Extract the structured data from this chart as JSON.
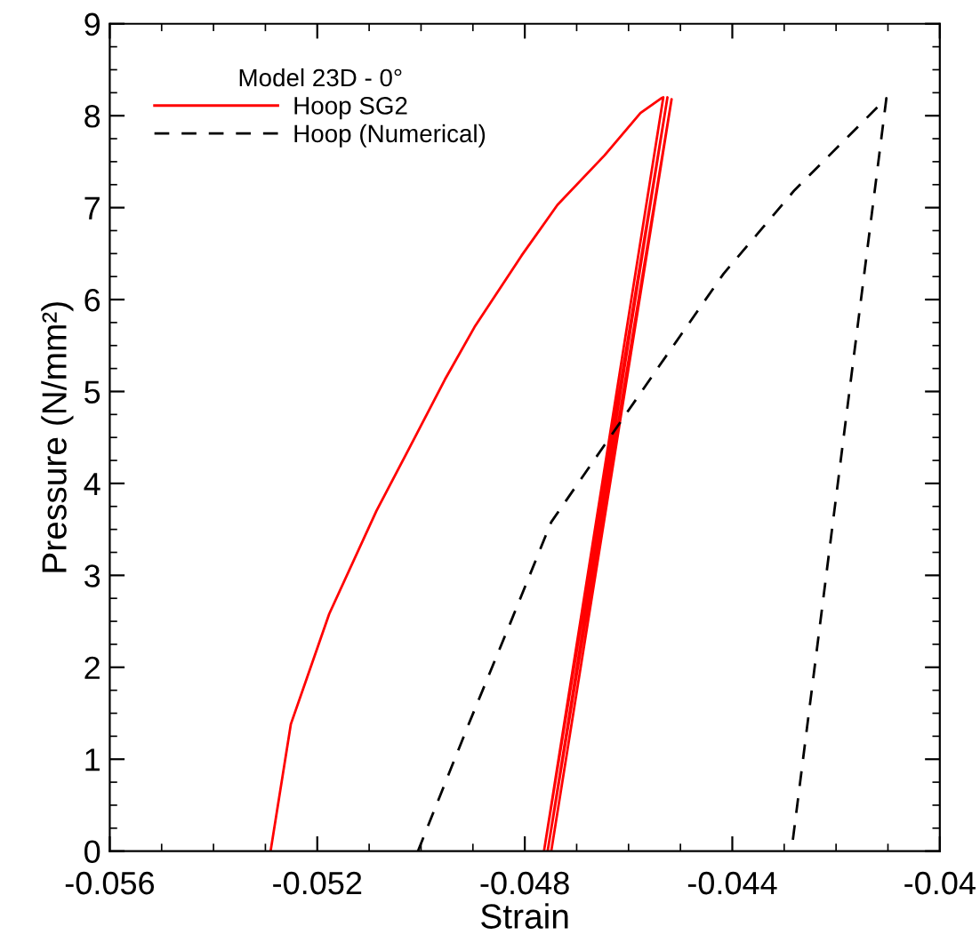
{
  "chart_data": {
    "type": "line",
    "xlabel": "Strain",
    "ylabel": "Pressure (N/mm²)",
    "legend_title": "Model 23D - 0°",
    "legend": "top left",
    "grid": false,
    "marker": "none",
    "xlim": [
      -0.056,
      -0.04
    ],
    "xticks": [
      -0.056,
      -0.052,
      -0.048,
      -0.044,
      -0.04
    ],
    "ylim": [
      0,
      9
    ],
    "yticks": [
      0,
      1,
      2,
      3,
      4,
      5,
      6,
      7,
      8,
      9
    ],
    "series": [
      {
        "name": "Hoop SG2",
        "color": "#ff0000",
        "line_style": "solid",
        "x": [
          -0.0529,
          -0.05251,
          -0.05177,
          -0.05086,
          -0.05023,
          -0.04954,
          -0.04897,
          -0.04806,
          -0.04737,
          -0.04646,
          -0.04577,
          -0.04537,
          -0.04533,
          -0.04763,
          -0.04525,
          -0.04756,
          -0.04517,
          -0.04749
        ],
        "values": [
          0,
          1.38,
          2.58,
          3.7,
          4.38,
          5.13,
          5.7,
          6.48,
          7.03,
          7.57,
          8.03,
          8.19,
          8.2,
          0,
          8.2,
          0,
          8.18,
          0
        ]
      },
      {
        "name": "Hoop (Numerical)",
        "color": "#000000",
        "line_style": "dashed",
        "x": [
          -0.05006,
          -0.04909,
          -0.04828,
          -0.04749,
          -0.04646,
          -0.04543,
          -0.04417,
          -0.0428,
          -0.04103,
          -0.04286
        ],
        "values": [
          0,
          1.37,
          2.48,
          3.58,
          4.42,
          5.26,
          6.28,
          7.19,
          8.19,
          0
        ]
      }
    ]
  }
}
